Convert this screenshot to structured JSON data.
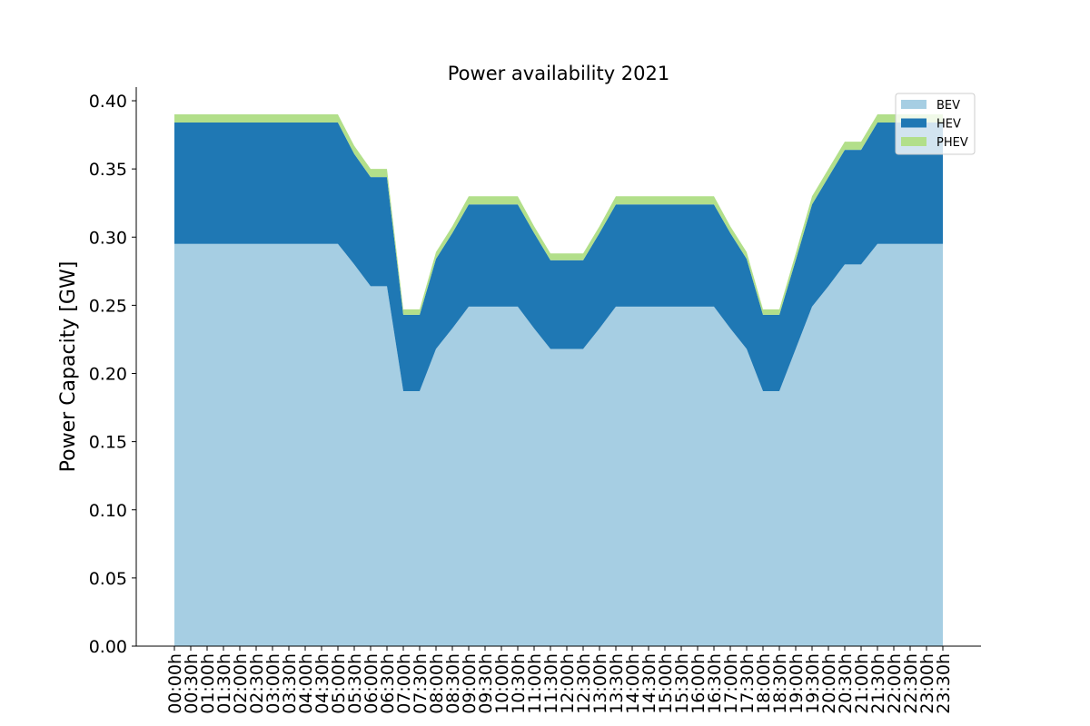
{
  "chart_data": {
    "type": "area",
    "stacked": true,
    "title": "Power availability 2021",
    "xlabel": "",
    "ylabel": "Power Capacity [GW]",
    "ylim": [
      0,
      0.41
    ],
    "yticks": [
      "0.00",
      "0.05",
      "0.10",
      "0.15",
      "0.20",
      "0.25",
      "0.30",
      "0.35",
      "0.40"
    ],
    "grid": false,
    "legend_position": "top-right",
    "categories": [
      "00:00h",
      "00:30h",
      "01:00h",
      "01:30h",
      "02:00h",
      "02:30h",
      "03:00h",
      "03:30h",
      "04:00h",
      "04:30h",
      "05:00h",
      "05:30h",
      "06:00h",
      "06:30h",
      "07:00h",
      "07:30h",
      "08:00h",
      "08:30h",
      "09:00h",
      "09:30h",
      "10:00h",
      "10:30h",
      "11:00h",
      "11:30h",
      "12:00h",
      "12:30h",
      "13:00h",
      "13:30h",
      "14:00h",
      "14:30h",
      "15:00h",
      "15:30h",
      "16:00h",
      "16:30h",
      "17:00h",
      "17:30h",
      "18:00h",
      "18:30h",
      "19:00h",
      "19:30h",
      "20:00h",
      "20:30h",
      "21:00h",
      "21:30h",
      "22:00h",
      "22:30h",
      "23:00h",
      "23:30h"
    ],
    "series": [
      {
        "name": "BEV",
        "color": "#a6cee3",
        "values": [
          0.295,
          0.295,
          0.295,
          0.295,
          0.295,
          0.295,
          0.295,
          0.295,
          0.295,
          0.295,
          0.295,
          0.28,
          0.264,
          0.264,
          0.187,
          0.187,
          0.218,
          0.233,
          0.249,
          0.249,
          0.249,
          0.249,
          0.233,
          0.218,
          0.218,
          0.218,
          0.233,
          0.249,
          0.249,
          0.249,
          0.249,
          0.249,
          0.249,
          0.249,
          0.233,
          0.218,
          0.187,
          0.187,
          0.218,
          0.249,
          0.264,
          0.28,
          0.28,
          0.295,
          0.295,
          0.295,
          0.295,
          0.295
        ]
      },
      {
        "name": "HEV",
        "color": "#1f78b4",
        "values": [
          0.089,
          0.089,
          0.089,
          0.089,
          0.089,
          0.089,
          0.089,
          0.089,
          0.089,
          0.089,
          0.089,
          0.081,
          0.08,
          0.08,
          0.056,
          0.056,
          0.066,
          0.07,
          0.075,
          0.075,
          0.075,
          0.075,
          0.07,
          0.065,
          0.065,
          0.065,
          0.07,
          0.075,
          0.075,
          0.075,
          0.075,
          0.075,
          0.075,
          0.075,
          0.07,
          0.066,
          0.056,
          0.056,
          0.065,
          0.075,
          0.08,
          0.084,
          0.084,
          0.089,
          0.089,
          0.089,
          0.089,
          0.089
        ]
      },
      {
        "name": "PHEV",
        "color": "#b2df8a",
        "values": [
          0.006,
          0.006,
          0.006,
          0.006,
          0.006,
          0.006,
          0.006,
          0.006,
          0.006,
          0.006,
          0.006,
          0.006,
          0.006,
          0.006,
          0.004,
          0.004,
          0.005,
          0.005,
          0.006,
          0.006,
          0.006,
          0.006,
          0.005,
          0.005,
          0.005,
          0.005,
          0.005,
          0.006,
          0.006,
          0.006,
          0.006,
          0.006,
          0.006,
          0.006,
          0.005,
          0.005,
          0.004,
          0.004,
          0.005,
          0.006,
          0.006,
          0.006,
          0.006,
          0.006,
          0.006,
          0.006,
          0.006,
          0.006
        ]
      }
    ]
  }
}
